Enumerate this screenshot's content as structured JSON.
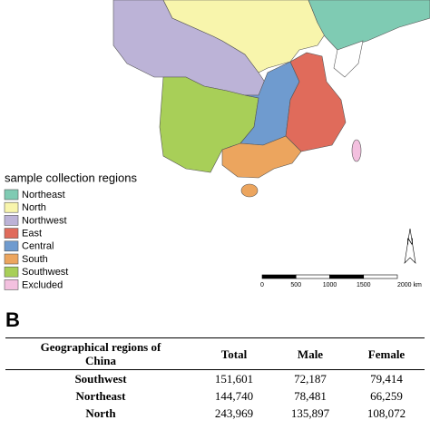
{
  "map": {
    "legend_title": "sample collection regions",
    "legend": [
      {
        "label": "Northeast",
        "color": "#7fcbb3"
      },
      {
        "label": "North",
        "color": "#f8f5ac"
      },
      {
        "label": "Northwest",
        "color": "#bcb3d7"
      },
      {
        "label": "East",
        "color": "#e06b5b"
      },
      {
        "label": "Central",
        "color": "#6f9bcf"
      },
      {
        "label": "South",
        "color": "#eca55e"
      },
      {
        "label": "Southwest",
        "color": "#a8cf58"
      },
      {
        "label": "Excluded",
        "color": "#f3c0df"
      }
    ],
    "north_label": "N",
    "scale_labels": [
      "0",
      "500",
      "1000",
      "1500",
      "2000 km"
    ]
  },
  "panel_b": {
    "label": "B",
    "table": {
      "header": [
        "Geographical regions of China",
        "Total",
        "Male",
        "Female"
      ],
      "rows": [
        [
          "Southwest",
          "151,601",
          "72,187",
          "79,414"
        ],
        [
          "Northeast",
          "144,740",
          "78,481",
          "66,259"
        ],
        [
          "North",
          "243,969",
          "135,897",
          "108,072"
        ]
      ]
    }
  }
}
